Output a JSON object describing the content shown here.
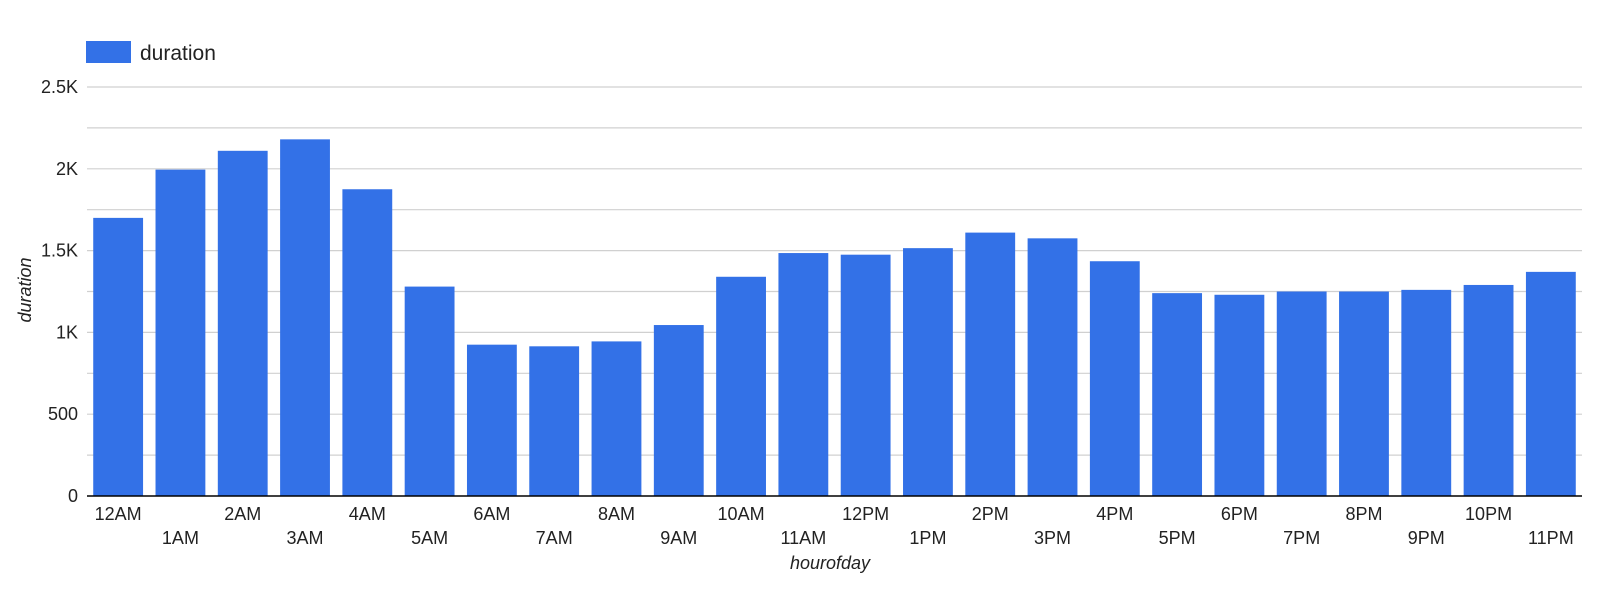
{
  "chart_data": {
    "type": "bar",
    "categories": [
      "12AM",
      "1AM",
      "2AM",
      "3AM",
      "4AM",
      "5AM",
      "6AM",
      "7AM",
      "8AM",
      "9AM",
      "10AM",
      "11AM",
      "12PM",
      "1PM",
      "2PM",
      "3PM",
      "4PM",
      "5PM",
      "6PM",
      "7PM",
      "8PM",
      "9PM",
      "10PM",
      "11PM"
    ],
    "series": [
      {
        "name": "duration",
        "values": [
          1700,
          1995,
          2110,
          2180,
          1875,
          1280,
          925,
          915,
          945,
          1045,
          1340,
          1485,
          1475,
          1515,
          1610,
          1575,
          1435,
          1240,
          1230,
          1250,
          1250,
          1260,
          1290,
          1370
        ],
        "color": "#3371E7"
      }
    ],
    "title": "",
    "xlabel": "hourofday",
    "ylabel": "duration",
    "ylim": [
      0,
      2500
    ],
    "yticks": [
      0,
      500,
      1000,
      1500,
      2000,
      2500
    ],
    "ytick_labels": [
      "0",
      "500",
      "1K",
      "1.5K",
      "2K",
      "2.5K"
    ],
    "grid": true,
    "legend": {
      "position": "top-left",
      "entries": [
        "duration"
      ]
    },
    "colors": {
      "bar": "#3371E7",
      "grid": "#d0d0d0",
      "axis": "#000000",
      "text": "#222222"
    }
  }
}
